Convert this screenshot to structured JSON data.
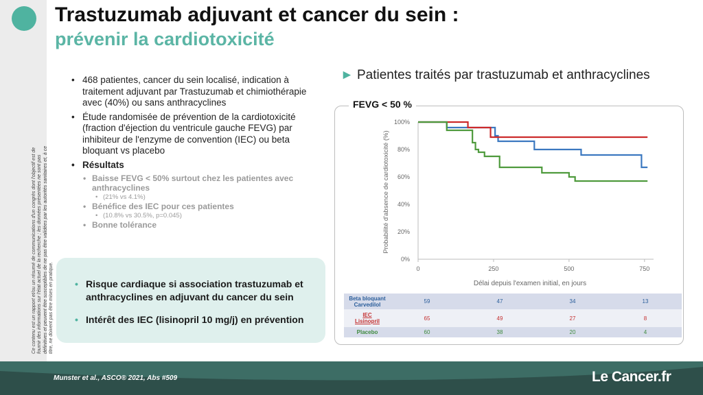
{
  "title_line1": "Trastuzumab adjuvant et cancer du sein :",
  "title_line2": "prévenir la cardiotoxicité",
  "disclaimer": "Ce contenu est un rapport et/ou un résumé de communications d'un congrès dont l'objectif est de fournir des informations sur l'état actuel de la recherche ; les données présentées ne sont pas définitives et peuvent être susceptibles de ne pas être validées par les autorités sanitaires et, à ce titre, ne doivent pas être mises en pratique.",
  "bullets": {
    "b1": "468 patientes, cancer du sein localisé, indication à traitement adjuvant par Trastuzumab et chimiothérapie avec (40%) ou sans anthracyclines",
    "b2": "Étude randomisée de prévention de la cardiotoxicité (fraction d'éjection du ventricule gauche FEVG) par inhibiteur de l'enzyme de convention (IEC) ou beta bloquant vs placebo",
    "b3": "Résultats",
    "r1": "Baisse FEVG < 50% surtout chez les patientes avec anthracyclines",
    "r1_sub": "(21% vs 4.1%)",
    "r2": "Bénéfice des IEC pour ces patientes",
    "r2_sub": "(10.8% vs 30.5%, p=0.045)",
    "r3": "Bonne tolérance"
  },
  "keybox": {
    "k1": "Risque cardiaque si association trastuzumab et anthracyclines en adjuvant du cancer du sein",
    "k2": "Intérêt des IEC (lisinopril 10 mg/j) en prévention"
  },
  "chart_heading": "Patientes traités par trastuzumab et anthracyclines",
  "panel_label": "FEVG < 50 %",
  "risk_table": {
    "rows": [
      {
        "label1": "Beta bloquant",
        "label2": "Carvedilol",
        "values": [
          "59",
          "47",
          "34",
          "13"
        ]
      },
      {
        "label1": "IEC",
        "label2": "Lisinopril",
        "values": [
          "65",
          "49",
          "27",
          "8"
        ]
      },
      {
        "label1": "Placebo",
        "label2": "",
        "values": [
          "60",
          "38",
          "20",
          "4"
        ]
      }
    ]
  },
  "citation": "Munster et al., ASCO® 2021, Abs #509",
  "brand": "Le Cancer.fr",
  "colors": {
    "teal": "#4fb3a0",
    "beta": "#3b78c0",
    "iec": "#cc2a2a",
    "placebo": "#4e9a3c",
    "footer": "#2e4f4a"
  },
  "chart_data": {
    "type": "line",
    "title": "",
    "xlabel": "Délai depuis l'examen initial, en jours",
    "ylabel": "Probabilité d'absence de cardiotoxicité (%)",
    "xlim": [
      0,
      780
    ],
    "ylim": [
      0,
      100
    ],
    "xticks": [
      0,
      250,
      500,
      750
    ],
    "yticks": [
      0,
      20,
      40,
      60,
      80,
      100
    ],
    "ytick_labels": [
      "0%",
      "20%",
      "40%",
      "60%",
      "80%",
      "100%"
    ],
    "series": [
      {
        "name": "Beta bloquant",
        "color": "#3b78c0",
        "x": [
          0,
          85,
          95,
          175,
          255,
          265,
          375,
          385,
          530,
          540,
          740,
          760
        ],
        "y": [
          100,
          100,
          96,
          96,
          90,
          86,
          86,
          80,
          80,
          76,
          67,
          67
        ]
      },
      {
        "name": "IEC",
        "color": "#cc2a2a",
        "x": [
          0,
          130,
          165,
          225,
          240,
          760
        ],
        "y": [
          100,
          100,
          96,
          96,
          89,
          89
        ]
      },
      {
        "name": "Placebo",
        "color": "#4e9a3c",
        "x": [
          0,
          80,
          95,
          170,
          180,
          190,
          200,
          220,
          270,
          410,
          500,
          520,
          760
        ],
        "y": [
          100,
          100,
          94,
          94,
          85,
          80,
          78,
          75,
          67,
          63,
          60,
          57,
          57
        ]
      }
    ]
  }
}
